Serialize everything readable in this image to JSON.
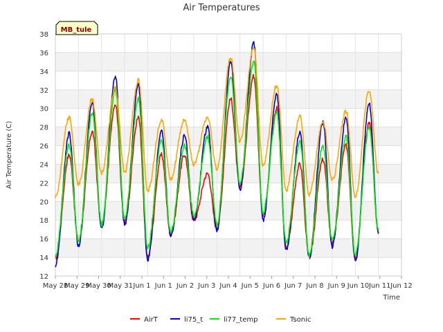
{
  "chart_data": {
    "type": "line",
    "title": "Air Temperatures",
    "xlabel": "Time",
    "ylabel": "Air Temperature (C)",
    "tag": "MB_tule",
    "x_tick_labels": [
      "May 28",
      "May 29",
      "May 30",
      "May 31",
      "Jun 1",
      "Jun 1",
      "Jun 2",
      "Jun 3",
      "Jun 4",
      "Jun 5",
      "Jun 6",
      "Jun 7",
      "Jun 8",
      "Jun 9",
      "Jun 10",
      "Jun 11",
      "Jun 12"
    ],
    "y_ticks": [
      12,
      14,
      16,
      18,
      20,
      22,
      24,
      26,
      28,
      30,
      32,
      34,
      36,
      38
    ],
    "xlim": [
      0,
      15
    ],
    "ylim": [
      12,
      38
    ],
    "grid": true,
    "legend_position": "bottom",
    "series": [
      {
        "name": "AirT",
        "color": "#ff0000",
        "mins": [
          13.8,
          15.8,
          17.5,
          17.8,
          14.0,
          16.5,
          18.0,
          17.0,
          21.5,
          18.5,
          15.0,
          14.0,
          15.5,
          14.0,
          16.5
        ],
        "maxs": [
          25.0,
          27.5,
          30.5,
          29.0,
          25.0,
          25.0,
          23.0,
          31.0,
          33.5,
          30.0,
          24.0,
          24.5,
          26.0,
          28.5
        ]
      },
      {
        "name": "li75_t",
        "color": "#0000cd",
        "mins": [
          13.2,
          15.2,
          17.0,
          17.5,
          13.8,
          16.3,
          18.0,
          16.9,
          21.3,
          18.0,
          14.8,
          13.9,
          15.2,
          13.6,
          16.6
        ],
        "maxs": [
          27.3,
          30.6,
          33.5,
          32.5,
          27.5,
          27.0,
          28.0,
          35.0,
          37.0,
          31.5,
          27.5,
          28.5,
          29.0,
          30.5
        ]
      },
      {
        "name": "li77_temp",
        "color": "#00ee00",
        "mins": [
          14.2,
          15.8,
          17.5,
          18.2,
          15.0,
          16.8,
          18.5,
          17.5,
          22.0,
          18.8,
          15.5,
          14.3,
          15.8,
          14.2,
          16.9
        ],
        "maxs": [
          26.0,
          29.5,
          32.0,
          31.0,
          26.5,
          26.0,
          27.0,
          33.5,
          35.0,
          29.5,
          26.5,
          26.0,
          27.0,
          28.0
        ]
      },
      {
        "name": "Tsonic",
        "color": "#ffa500",
        "mins": [
          20.5,
          21.8,
          23.0,
          23.2,
          21.2,
          22.5,
          24.0,
          23.5,
          26.5,
          23.8,
          21.2,
          20.8,
          22.3,
          20.5,
          23.0
        ],
        "maxs": [
          29.0,
          31.0,
          32.2,
          33.0,
          28.8,
          28.8,
          29.0,
          35.5,
          36.5,
          32.5,
          29.2,
          28.5,
          29.7,
          32.0
        ]
      }
    ]
  }
}
